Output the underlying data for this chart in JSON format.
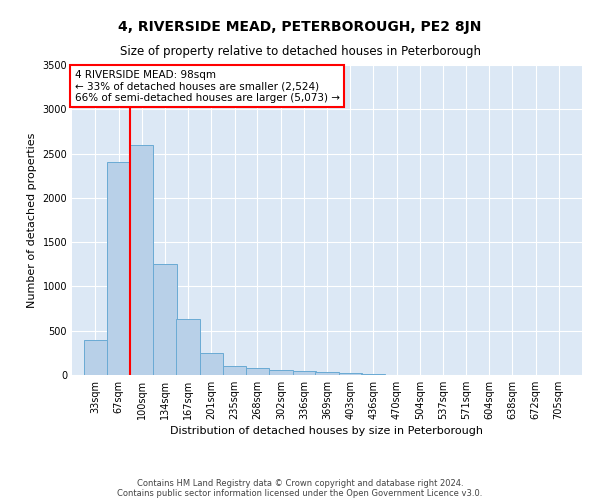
{
  "title": "4, RIVERSIDE MEAD, PETERBOROUGH, PE2 8JN",
  "subtitle": "Size of property relative to detached houses in Peterborough",
  "xlabel": "Distribution of detached houses by size in Peterborough",
  "ylabel": "Number of detached properties",
  "footnote1": "Contains HM Land Registry data © Crown copyright and database right 2024.",
  "footnote2": "Contains public sector information licensed under the Open Government Licence v3.0.",
  "annotation_line1": "4 RIVERSIDE MEAD: 98sqm",
  "annotation_line2": "← 33% of detached houses are smaller (2,524)",
  "annotation_line3": "66% of semi-detached houses are larger (5,073) →",
  "bar_color": "#b8d0e8",
  "bar_edge_color": "#6aaad4",
  "background_color": "#dce8f5",
  "red_line_x": 100,
  "categories": [
    "33sqm",
    "67sqm",
    "100sqm",
    "134sqm",
    "167sqm",
    "201sqm",
    "235sqm",
    "268sqm",
    "302sqm",
    "336sqm",
    "369sqm",
    "403sqm",
    "436sqm",
    "470sqm",
    "504sqm",
    "537sqm",
    "571sqm",
    "604sqm",
    "638sqm",
    "672sqm",
    "705sqm"
  ],
  "bin_left_edges": [
    33,
    67,
    100,
    134,
    167,
    201,
    235,
    268,
    302,
    336,
    369,
    403,
    436,
    470,
    504,
    537,
    571,
    604,
    638,
    672,
    705
  ],
  "bin_width": 34,
  "values": [
    390,
    2400,
    2600,
    1250,
    630,
    250,
    100,
    80,
    60,
    50,
    30,
    20,
    10,
    5,
    3,
    2,
    2,
    1,
    1,
    1,
    1
  ],
  "ylim": [
    0,
    3500
  ],
  "yticks": [
    0,
    500,
    1000,
    1500,
    2000,
    2500,
    3000,
    3500
  ],
  "title_fontsize": 10,
  "subtitle_fontsize": 8.5,
  "xlabel_fontsize": 8,
  "ylabel_fontsize": 8,
  "tick_fontsize": 7,
  "footnote_fontsize": 6,
  "annotation_fontsize": 7.5
}
